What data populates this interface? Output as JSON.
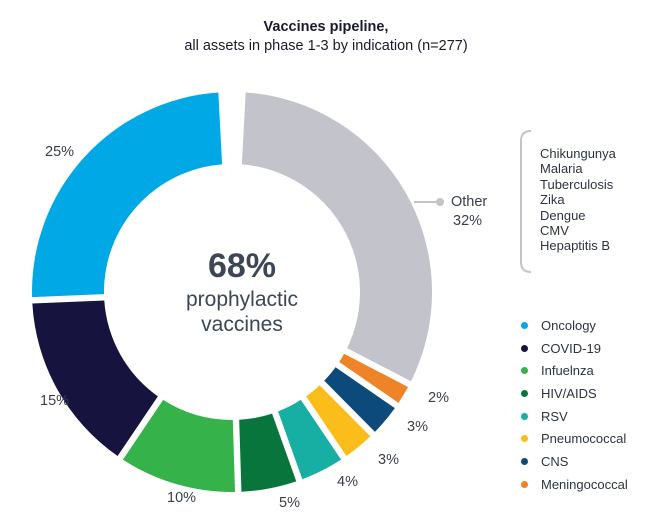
{
  "title_line1": "Vaccines pipeline,",
  "title_line2": "all assets in phase 1-3 by indication (n=277)",
  "center_value": "68%",
  "center_line1": "prophylactic",
  "center_line2": "vaccines",
  "other_label": "Other",
  "other_list": [
    "Chikungunya",
    "Malaria",
    "Tuberculosis",
    "Zika",
    "Dengue",
    "CMV",
    "Hepaptitis B"
  ],
  "chart_data": {
    "type": "pie",
    "donut": true,
    "title": "Vaccines pipeline, all assets in phase 1-3 by indication (n=277)",
    "categories": [
      "Other",
      "Meningococcal",
      "CNS",
      "Pneumococcal",
      "RSV",
      "HIV/AIDS",
      "Infuelnza",
      "COVID-19",
      "Oncology"
    ],
    "values": [
      32,
      2,
      3,
      3,
      4,
      5,
      10,
      15,
      25
    ],
    "labels": [
      "32%",
      "2%",
      "3%",
      "3%",
      "4%",
      "5%",
      "10%",
      "15%",
      "25%"
    ],
    "colors": [
      "#c3c4cb",
      "#ee8427",
      "#0b4a7a",
      "#fbbd19",
      "#17aea3",
      "#08763c",
      "#35b34a",
      "#16133f",
      "#00a9e5"
    ],
    "legend_position": "right"
  },
  "legend": [
    {
      "label": "Oncology",
      "color": "#00a9e5"
    },
    {
      "label": "COVID-19",
      "color": "#16133f"
    },
    {
      "label": "Infuelnza",
      "color": "#35b34a"
    },
    {
      "label": "HIV/AIDS",
      "color": "#08763c"
    },
    {
      "label": "RSV",
      "color": "#17aea3"
    },
    {
      "label": "Pneumococcal",
      "color": "#fbbd19"
    },
    {
      "label": "CNS",
      "color": "#0b4a7a"
    },
    {
      "label": "Meningococcal",
      "color": "#ee8427"
    }
  ]
}
